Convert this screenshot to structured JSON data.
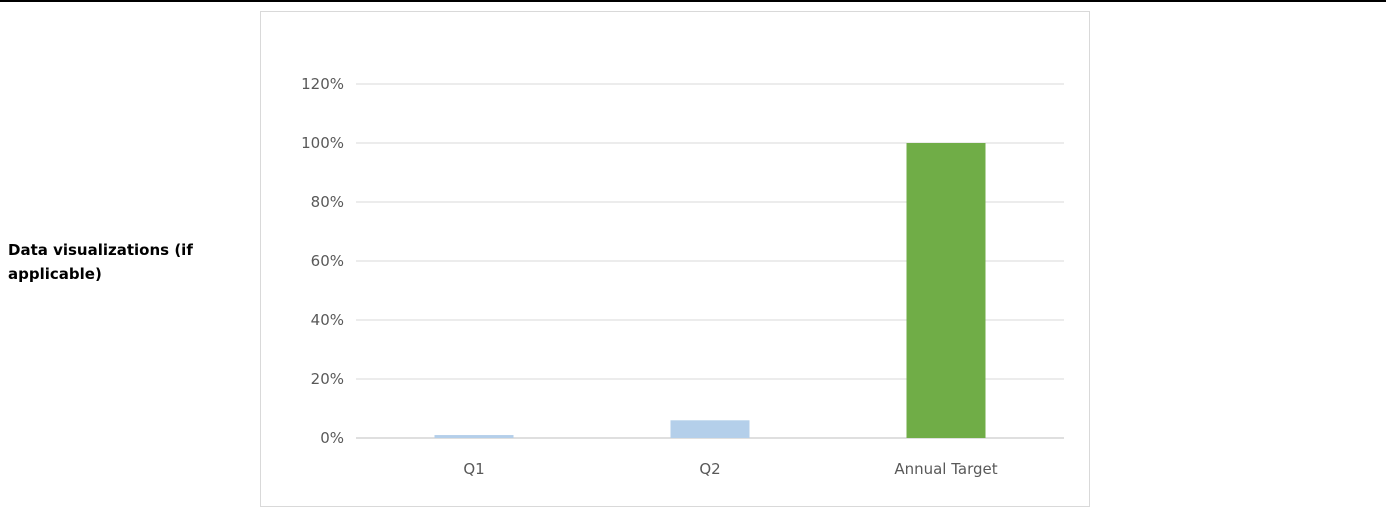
{
  "row_label": "Data visualizations (if applicable)",
  "chart_data": {
    "type": "bar",
    "categories": [
      "Q1",
      "Q2",
      "Annual Target"
    ],
    "values": [
      1,
      6,
      100
    ],
    "bar_colors": [
      "#b4cfea",
      "#b4cfea",
      "#70ad47"
    ],
    "ylim": [
      0,
      120
    ],
    "y_ticks": [
      0,
      20,
      40,
      60,
      80,
      100,
      120
    ],
    "y_tick_labels": [
      "0%",
      "20%",
      "40%",
      "60%",
      "80%",
      "100%",
      "120%"
    ],
    "grid": true,
    "title": "",
    "xlabel": "",
    "ylabel": ""
  }
}
